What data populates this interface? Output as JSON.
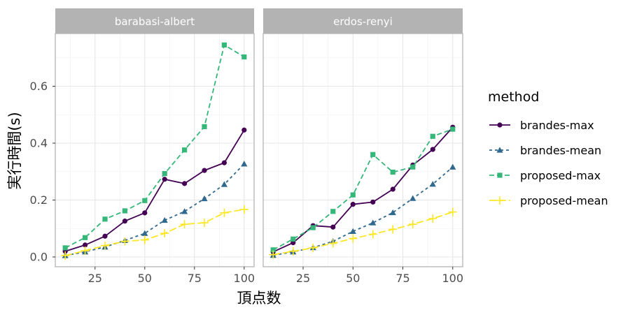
{
  "chart_data": {
    "type": "line",
    "title": "",
    "xlabel": "頂点数",
    "ylabel": "実行時間(s)",
    "xlim": [
      5,
      105
    ],
    "ylim": [
      -0.02,
      0.79
    ],
    "x_ticks": [
      25,
      50,
      75,
      100
    ],
    "y_ticks": [
      0.0,
      0.2,
      0.4,
      0.6
    ],
    "y_tick_labels": [
      "0.0",
      "0.2",
      "0.4",
      "0.6"
    ],
    "grid": true,
    "legend": {
      "title": "method",
      "position": "right",
      "entries": [
        "brandes-max",
        "brandes-mean",
        "proposed-max",
        "proposed-mean"
      ]
    },
    "styles": {
      "brandes-max": {
        "color": "#440154",
        "dash": "",
        "marker": "circle"
      },
      "brandes-mean": {
        "color": "#31688e",
        "dash": "4,4",
        "marker": "triangle"
      },
      "proposed-max": {
        "color": "#35b779",
        "dash": "7,4",
        "marker": "square"
      },
      "proposed-mean": {
        "color": "#fde725",
        "dash": "10,4",
        "marker": "plus"
      }
    },
    "x": [
      10,
      20,
      30,
      40,
      50,
      60,
      70,
      80,
      90,
      100
    ],
    "panels": [
      {
        "title": "barabasi-albert",
        "series": [
          {
            "name": "brandes-max",
            "values": [
              0.02,
              0.042,
              0.073,
              0.126,
              0.155,
              0.273,
              0.258,
              0.304,
              0.331,
              0.446
            ]
          },
          {
            "name": "brandes-mean",
            "values": [
              0.005,
              0.018,
              0.035,
              0.058,
              0.083,
              0.129,
              0.16,
              0.205,
              0.255,
              0.327
            ]
          },
          {
            "name": "proposed-max",
            "values": [
              0.032,
              0.068,
              0.133,
              0.162,
              0.198,
              0.293,
              0.376,
              0.458,
              0.745,
              0.703
            ]
          },
          {
            "name": "proposed-mean",
            "values": [
              0.005,
              0.022,
              0.04,
              0.055,
              0.06,
              0.083,
              0.115,
              0.12,
              0.155,
              0.167
            ]
          }
        ]
      },
      {
        "title": "erdos-renyi",
        "series": [
          {
            "name": "brandes-max",
            "values": [
              0.018,
              0.05,
              0.11,
              0.105,
              0.185,
              0.193,
              0.238,
              0.323,
              0.378,
              0.456
            ]
          },
          {
            "name": "brandes-mean",
            "values": [
              0.006,
              0.018,
              0.033,
              0.055,
              0.09,
              0.12,
              0.156,
              0.206,
              0.256,
              0.316
            ]
          },
          {
            "name": "proposed-max",
            "values": [
              0.025,
              0.063,
              0.103,
              0.16,
              0.218,
              0.36,
              0.298,
              0.316,
              0.424,
              0.449
            ]
          },
          {
            "name": "proposed-mean",
            "values": [
              0.008,
              0.02,
              0.032,
              0.048,
              0.065,
              0.08,
              0.097,
              0.115,
              0.135,
              0.158
            ]
          }
        ]
      }
    ]
  }
}
